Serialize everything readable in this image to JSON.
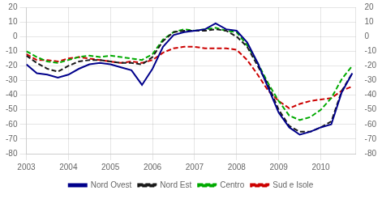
{
  "chart_data": {
    "type": "line",
    "x": [
      2003.0,
      2003.25,
      2003.5,
      2003.75,
      2004.0,
      2004.25,
      2004.5,
      2004.75,
      2005.0,
      2005.25,
      2005.5,
      2005.75,
      2006.0,
      2006.25,
      2006.5,
      2006.75,
      2007.0,
      2007.25,
      2007.5,
      2007.75,
      2008.0,
      2008.25,
      2008.5,
      2008.75,
      2009.0,
      2009.25,
      2009.5,
      2009.75,
      2010.0,
      2010.25,
      2010.5,
      2010.75
    ],
    "series": [
      {
        "name": "Nord Ovest",
        "color": "#00008B",
        "line_style": "solid",
        "values": [
          -19,
          -25,
          -26,
          -28,
          -26,
          -22,
          -19,
          -18,
          -19,
          -21,
          -23,
          -33,
          -22,
          -7,
          1,
          3,
          4,
          5,
          9,
          5,
          4,
          -4,
          -18,
          -35,
          -52,
          -62,
          -67,
          -65,
          -62,
          -60,
          -38,
          -25
        ]
      },
      {
        "name": "Nord Est",
        "color": "#1a1a1a",
        "line_style": "dashed",
        "values": [
          -13,
          -18,
          -22,
          -24,
          -20,
          -17,
          -16,
          -16,
          -17,
          -18,
          -18,
          -19,
          -14,
          -3,
          3,
          4,
          4,
          4,
          5,
          4,
          0,
          -7,
          -20,
          -33,
          -50,
          -61,
          -65,
          -65,
          -62,
          -58,
          -37,
          -25
        ]
      },
      {
        "name": "Centro",
        "color": "#00aa00",
        "line_style": "dashed",
        "values": [
          -10,
          -14,
          -17,
          -18,
          -16,
          -14,
          -13,
          -14,
          -13,
          -14,
          -15,
          -16,
          -12,
          -2,
          3,
          5,
          4,
          5,
          6,
          4,
          3,
          -6,
          -18,
          -32,
          -44,
          -54,
          -57,
          -55,
          -50,
          -42,
          -29,
          -20
        ]
      },
      {
        "name": "Sud e Isole",
        "color": "#cc0000",
        "line_style": "dashed",
        "values": [
          -12,
          -16,
          -16,
          -17,
          -15,
          -14,
          -15,
          -16,
          -17,
          -18,
          -17,
          -18,
          -16,
          -11,
          -8,
          -7,
          -7,
          -8,
          -8,
          -8,
          -9,
          -16,
          -26,
          -37,
          -44,
          -49,
          -46,
          -44,
          -43,
          -42,
          -37,
          -34
        ]
      }
    ],
    "xlim": [
      2003.0,
      2010.83
    ],
    "xticks": [
      2003,
      2004,
      2005,
      2006,
      2007,
      2008,
      2009,
      2010
    ],
    "ylim": [
      -80,
      20
    ],
    "yticks": [
      -80,
      -70,
      -60,
      -50,
      -40,
      -30,
      -20,
      -10,
      0,
      10,
      20
    ],
    "y2lim": [
      -80,
      20
    ],
    "y2ticks": [
      -80,
      -70,
      -60,
      -50,
      -40,
      -30,
      -20,
      -10,
      0,
      10,
      20
    ],
    "grid": true,
    "legend": "bottom"
  }
}
